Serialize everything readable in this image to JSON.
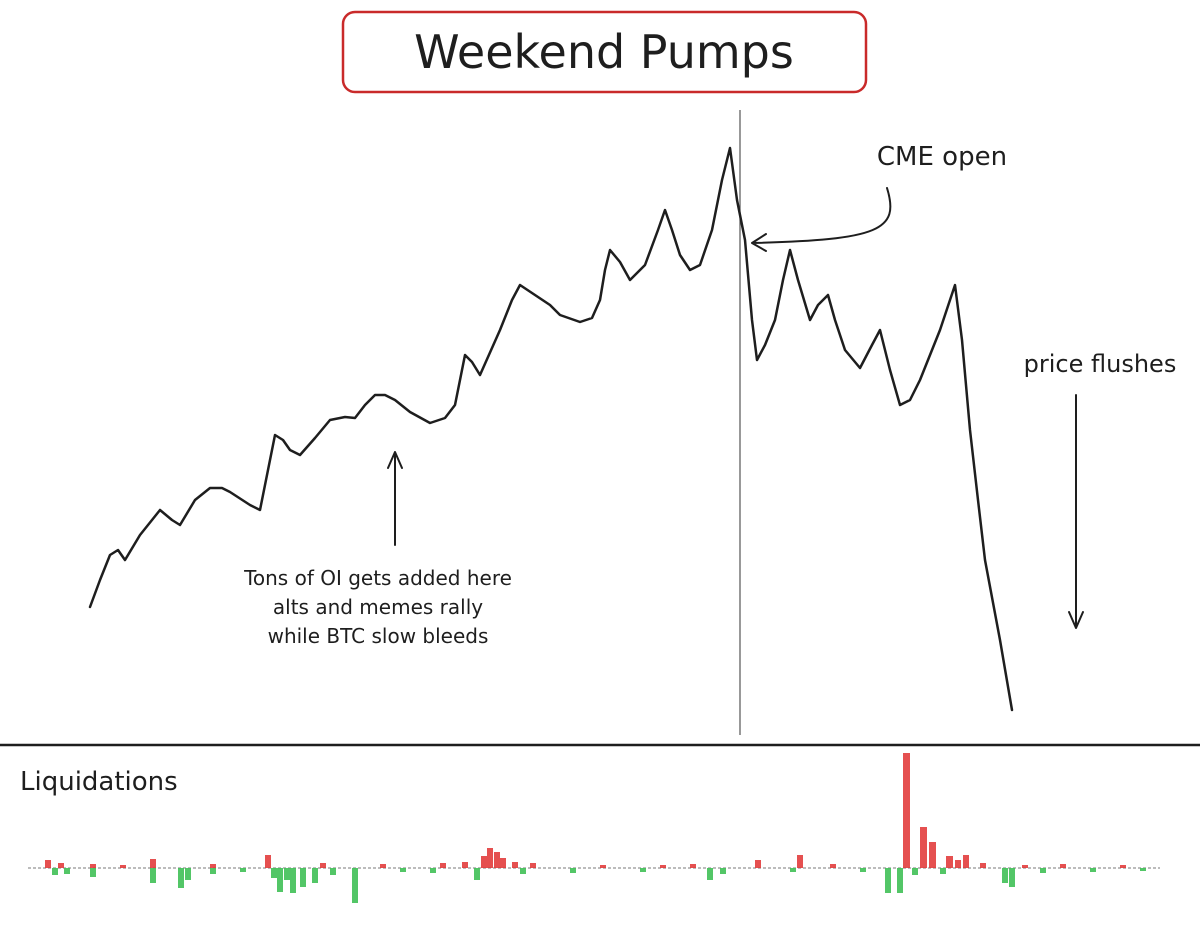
{
  "header": {
    "title": "Weekend Pumps"
  },
  "annotations": {
    "cme_open": "CME open",
    "price_flushes": "price flushes",
    "oi_note": [
      "Tons of OI gets added here",
      "alts and memes rally",
      "while BTC slow bleeds"
    ]
  },
  "panel": {
    "label": "Liquidations"
  }
}
